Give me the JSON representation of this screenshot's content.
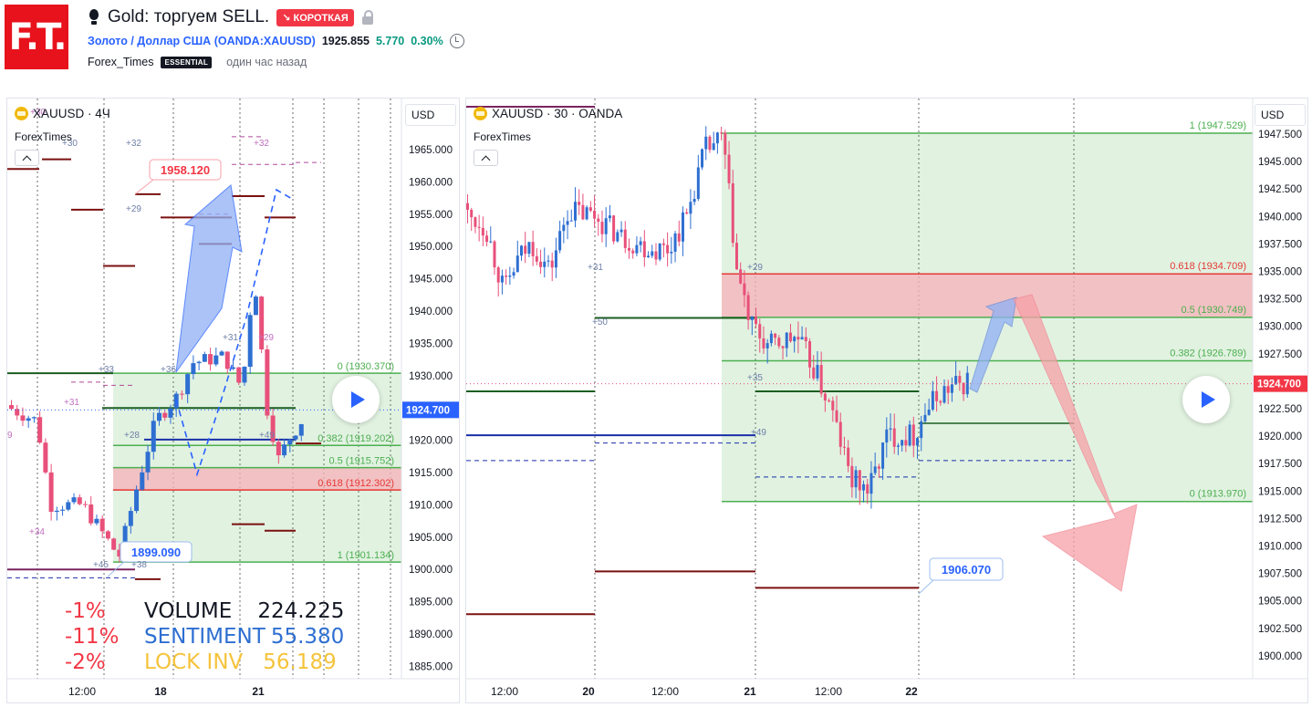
{
  "header": {
    "logo_text": "F.T.",
    "title": "Gold: торгуем SELL.",
    "badge": "↘ КОРОТКАЯ",
    "symbol_link": "Золото / Доллар США",
    "symbol_code": "(OANDA:XAUUSD)",
    "price": "1925.855",
    "change": "5.770",
    "change_pct": "0.30%",
    "author": "Forex_Times",
    "author_badge": "ESSENTIAL",
    "published": "один час назад"
  },
  "left_chart": {
    "legend": "XAUUSD · 4Ч",
    "sub_legend": "ForexTimes",
    "currency": "USD",
    "price_axis": [
      "1965.000",
      "1960.000",
      "1955.000",
      "1950.000",
      "1945.000",
      "1940.000",
      "1935.000",
      "1930.000",
      "1925.000",
      "1920.000",
      "1915.000",
      "1910.000",
      "1905.000",
      "1900.000",
      "1895.000",
      "1890.000",
      "1885.000"
    ],
    "current_price": "1924.700",
    "time_axis": [
      "12:00",
      "18",
      "21"
    ],
    "callout_high": "1958.120",
    "callout_low": "1899.090",
    "fib_labels": [
      "0 (1930.370)",
      "0.382 (1919.202)",
      "0.5 (1915.752)",
      "0.618 (1912.302)",
      "1 (1901.134)"
    ],
    "small_labels": [
      "+30",
      "+30",
      "+32",
      "+32",
      "+29",
      "+31",
      "+29",
      "+33",
      "+36",
      "+31",
      "+28",
      "+49",
      "+34",
      "+45",
      "+38",
      "9"
    ],
    "overlay": {
      "rows": [
        {
          "pct": "-1%",
          "label": "VOLUME",
          "value": "224.225"
        },
        {
          "pct": "-11%",
          "label": "SENTIMENT",
          "value": "55.380"
        },
        {
          "pct": "-2%",
          "label": "LOCK INV",
          "value": "56.189"
        }
      ]
    }
  },
  "right_chart": {
    "legend": "XAUUSD · 30 · OANDA",
    "sub_legend": "ForexTimes",
    "currency": "USD",
    "price_axis": [
      "1947.500",
      "1945.000",
      "1942.500",
      "1940.000",
      "1937.500",
      "1935.000",
      "1932.500",
      "1930.000",
      "1927.500",
      "1925.000",
      "1922.500",
      "1920.000",
      "1917.500",
      "1915.000",
      "1912.500",
      "1910.000",
      "1907.500",
      "1905.000",
      "1902.500",
      "1900.000"
    ],
    "current_price": "1924.700",
    "time_axis": [
      "12:00",
      "20",
      "12:00",
      "21",
      "12:00",
      "22"
    ],
    "fib_labels": [
      "1 (1947.529)",
      "0.618 (1934.709)",
      "0.5 (1930.749)",
      "0.382 (1926.789)",
      "0 (1913.970)"
    ],
    "callout_low": "1906.070",
    "small_labels": [
      "+31",
      "+50",
      "+29",
      "+35",
      "+49"
    ]
  },
  "colors": {
    "up": "#2e6fd1",
    "down": "#e8507a",
    "fib_green": "#4caf50",
    "fib_red": "#e53935",
    "level_dark": "#7b1010",
    "level_blue": "#1a2fa8",
    "level_green": "#1b5e20"
  }
}
